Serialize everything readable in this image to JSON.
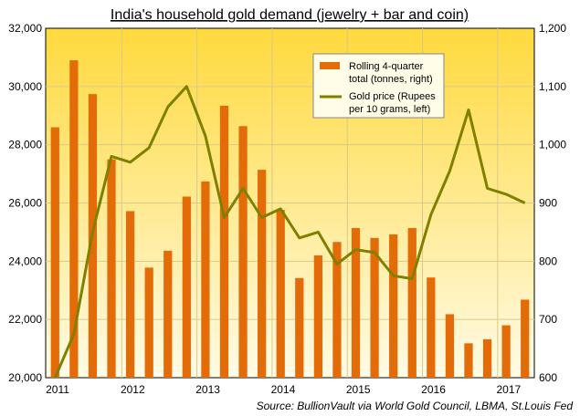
{
  "chart_data": {
    "type": "bar",
    "title": "India's household gold demand (jewelry + bar and coin)",
    "source": "Source: BullionVault via World Gold Council, LBMA, St.Louis Fed",
    "x_ticks": [
      "2011",
      "2012",
      "2013",
      "2014",
      "2015",
      "2016",
      "2017"
    ],
    "y_left": {
      "ylim": [
        20000,
        32000
      ],
      "ticks": [
        "20,000",
        "22,000",
        "24,000",
        "26,000",
        "28,000",
        "30,000",
        "32,000"
      ],
      "tick_values": [
        20000,
        22000,
        24000,
        26000,
        28000,
        30000,
        32000
      ]
    },
    "y_right": {
      "ylim": [
        600,
        1200
      ],
      "ticks": [
        "600",
        "700",
        "800",
        "900",
        "1,000",
        "1,100",
        "1,200"
      ],
      "tick_values": [
        600,
        700,
        800,
        900,
        1000,
        1100,
        1200
      ]
    },
    "grid": true,
    "legend_position": "top-right",
    "series": [
      {
        "name": "Rolling 4-quarter total (tonnes, right)",
        "type": "bar",
        "axis": "right",
        "color": "#E36C09",
        "values": [
          1030,
          1145,
          1087,
          975,
          886,
          789,
          818,
          911,
          937,
          1067,
          1032,
          957,
          888,
          771,
          810,
          833,
          857,
          840,
          846,
          857,
          772,
          709,
          659,
          666,
          690,
          734
        ]
      },
      {
        "name": "Gold price (Rupees per 10 grams, left)",
        "type": "line",
        "axis": "left",
        "color": "#7F7F00",
        "values": [
          20000,
          21500,
          25000,
          27600,
          27400,
          27900,
          29300,
          30000,
          28300,
          25500,
          26500,
          25500,
          25800,
          24800,
          25000,
          23900,
          24400,
          24300,
          23500,
          23400,
          25600,
          27100,
          29200,
          26500,
          26300,
          26000
        ]
      }
    ]
  },
  "legend": {
    "items": [
      {
        "label_line1": "Rolling 4-quarter",
        "label_line2": "total (tonnes, right)",
        "swatch": "bar",
        "color": "#E36C09"
      },
      {
        "label_line1": "Gold price (Rupees",
        "label_line2": "per 10 grams, left)",
        "swatch": "line",
        "color": "#7F7F00"
      }
    ]
  },
  "colors": {
    "plot_top": "#FFD93D",
    "plot_bottom": "#FFFBE6",
    "gridline": "#D9C98A",
    "axis": "#000000"
  }
}
